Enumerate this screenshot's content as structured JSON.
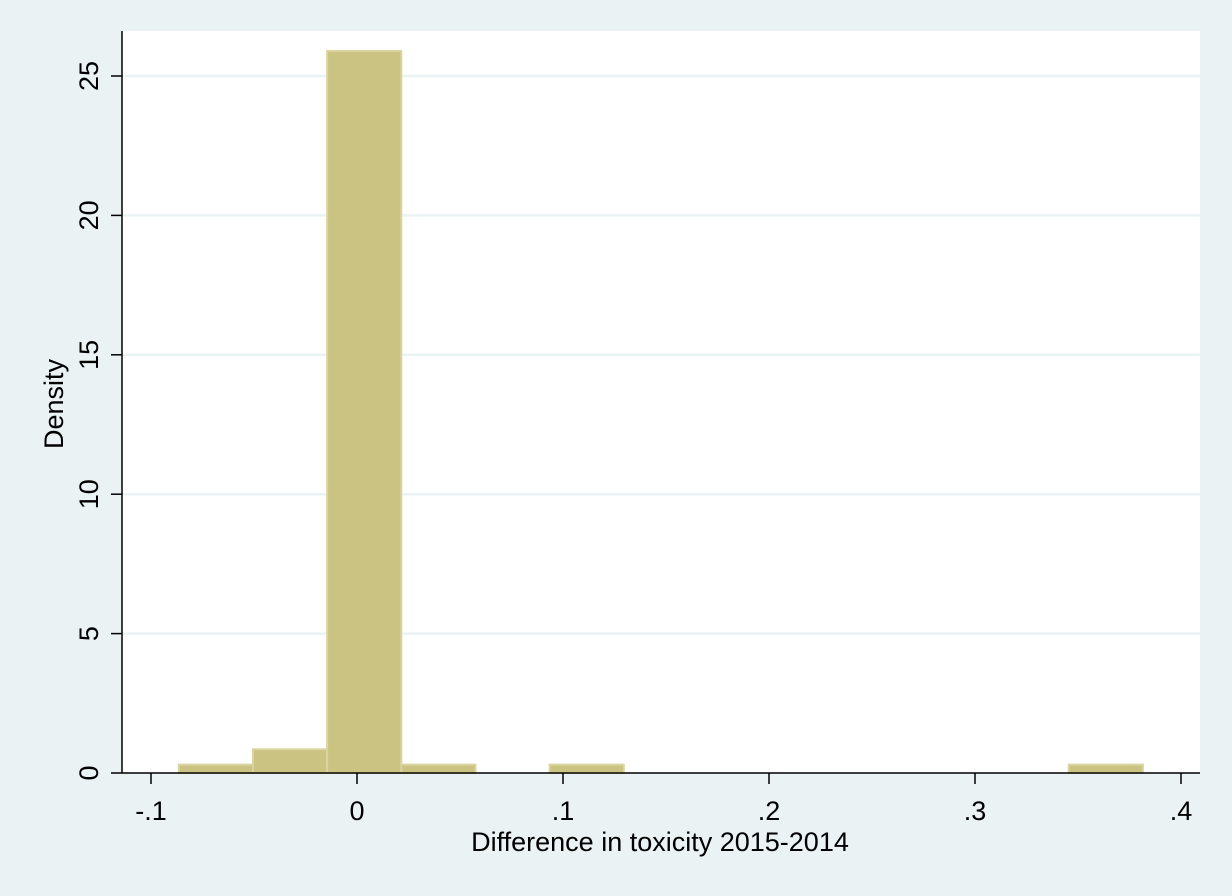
{
  "chart_data": {
    "type": "bar",
    "subtype": "histogram",
    "xlabel": "Difference in toxicity 2015-2014",
    "ylabel": "Density",
    "xlim": [
      -0.1,
      0.4
    ],
    "ylim": [
      0,
      25
    ],
    "x_ticks": [
      -0.1,
      0,
      0.1,
      0.2,
      0.3,
      0.4
    ],
    "x_tick_labels": [
      "-.1",
      "0",
      ".1",
      ".2",
      ".3",
      ".4"
    ],
    "y_ticks": [
      0,
      5,
      10,
      15,
      20,
      25
    ],
    "y_tick_labels": [
      "0",
      "5",
      "10",
      "15",
      "20",
      "25"
    ],
    "grid": true,
    "colors": {
      "bar_fill": "#cbc382",
      "bar_edge": "#d9d4a0",
      "plot_background": "#ffffff",
      "outer_background": "#eaf2f3",
      "grid": "#eaf2f3"
    },
    "bins": [
      {
        "x0": -0.0865,
        "x1": -0.0505,
        "value": 0.3
      },
      {
        "x0": -0.0505,
        "x1": -0.0145,
        "value": 0.85
      },
      {
        "x0": -0.0145,
        "x1": 0.0215,
        "value": 25.9
      },
      {
        "x0": 0.0215,
        "x1": 0.0575,
        "value": 0.3
      },
      {
        "x0": 0.0935,
        "x1": 0.1295,
        "value": 0.3
      },
      {
        "x0": 0.3455,
        "x1": 0.3815,
        "value": 0.3
      }
    ]
  }
}
